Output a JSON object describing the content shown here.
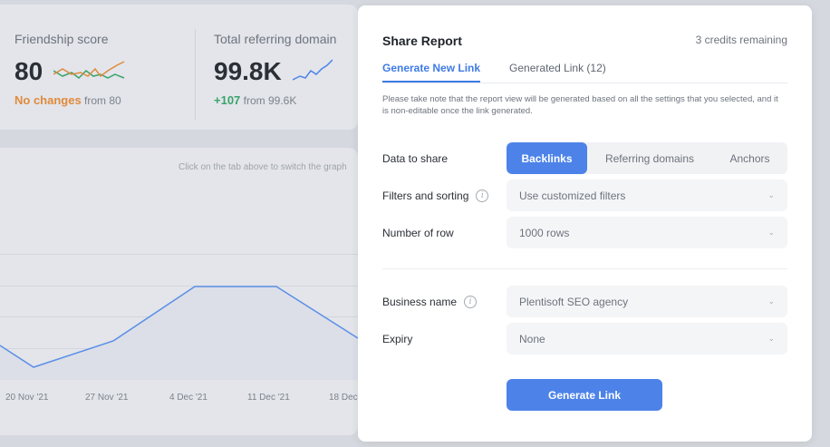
{
  "dashboard": {
    "friendship": {
      "title": "Friendship score",
      "value": "80",
      "status": "No changes",
      "from": "from 80"
    },
    "referring": {
      "title": "Total referring domain",
      "value": "99.8K",
      "delta": "+107",
      "from": "from 99.6K"
    },
    "chart": {
      "hint": "Click on the tab above to switch the graph",
      "x_ticks": [
        "20 Nov '21",
        "27 Nov '21",
        "4 Dec '21",
        "11 Dec '21",
        "18 Dec"
      ]
    },
    "colors": {
      "orange": "#e08a3c",
      "green": "#3aa36a",
      "blue": "#4d83e8"
    }
  },
  "modal": {
    "title": "Share Report",
    "credits": "3 credits remaining",
    "tabs": [
      {
        "label": "Generate New Link",
        "active": true
      },
      {
        "label": "Generated Link (12)",
        "active": false
      }
    ],
    "note": "Please take note that the report view will be generated based on all the settings that you selected, and it is non-editable once the link generated.",
    "data_to_share": {
      "label": "Data to share",
      "options": [
        "Backlinks",
        "Referring domains",
        "Anchors"
      ],
      "selected": "Backlinks"
    },
    "filters": {
      "label": "Filters and sorting",
      "value": "Use customized filters",
      "icon": "info-icon"
    },
    "rows": {
      "label": "Number of row",
      "value": "1000 rows"
    },
    "business": {
      "label": "Business name",
      "value": "Plentisoft SEO agency",
      "icon": "info-icon"
    },
    "expiry": {
      "label": "Expiry",
      "value": "None"
    },
    "button": "Generate Link",
    "accent": "#4d83e8"
  }
}
